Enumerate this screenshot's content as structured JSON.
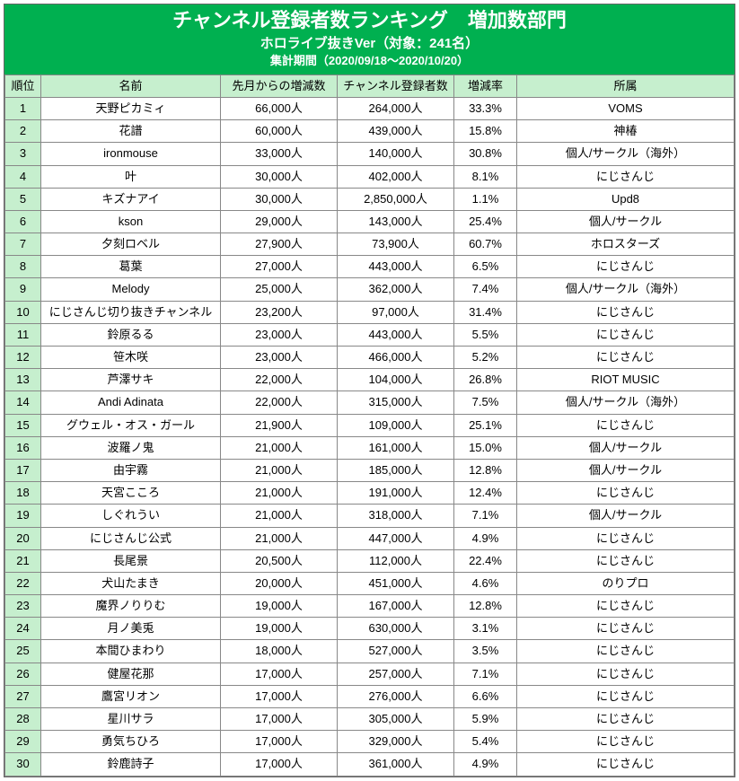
{
  "colors": {
    "header_bg": "#00b050",
    "header_text": "#ffffff",
    "thead_bg": "#c6efce",
    "rank_bg": "#c6efce",
    "row_bg": "#ffffff",
    "border": "#888888"
  },
  "header": {
    "title": "チャンネル登録者数ランキング　増加数部門",
    "subtitle": "ホロライブ抜きVer（対象：241名）",
    "period": "集計期間（2020/09/18～2020/10/20）"
  },
  "columns": [
    "順位",
    "名前",
    "先月からの増減数",
    "チャンネル登録者数",
    "増減率",
    "所属"
  ],
  "rows": [
    {
      "rank": 1,
      "name": "天野ピカミィ",
      "delta": "66,000人",
      "subs": "264,000人",
      "rate": "33.3%",
      "affil": "VOMS"
    },
    {
      "rank": 2,
      "name": "花譜",
      "delta": "60,000人",
      "subs": "439,000人",
      "rate": "15.8%",
      "affil": "神椿"
    },
    {
      "rank": 3,
      "name": "ironmouse",
      "delta": "33,000人",
      "subs": "140,000人",
      "rate": "30.8%",
      "affil": "個人/サークル（海外）"
    },
    {
      "rank": 4,
      "name": "叶",
      "delta": "30,000人",
      "subs": "402,000人",
      "rate": "8.1%",
      "affil": "にじさんじ"
    },
    {
      "rank": 5,
      "name": "キズナアイ",
      "delta": "30,000人",
      "subs": "2,850,000人",
      "rate": "1.1%",
      "affil": "Upd8"
    },
    {
      "rank": 6,
      "name": "kson",
      "delta": "29,000人",
      "subs": "143,000人",
      "rate": "25.4%",
      "affil": "個人/サークル"
    },
    {
      "rank": 7,
      "name": "夕刻ロベル",
      "delta": "27,900人",
      "subs": "73,900人",
      "rate": "60.7%",
      "affil": "ホロスターズ"
    },
    {
      "rank": 8,
      "name": "葛葉",
      "delta": "27,000人",
      "subs": "443,000人",
      "rate": "6.5%",
      "affil": "にじさんじ"
    },
    {
      "rank": 9,
      "name": "Melody",
      "delta": "25,000人",
      "subs": "362,000人",
      "rate": "7.4%",
      "affil": "個人/サークル（海外）"
    },
    {
      "rank": 10,
      "name": "にじさんじ切り抜きチャンネル",
      "delta": "23,200人",
      "subs": "97,000人",
      "rate": "31.4%",
      "affil": "にじさんじ"
    },
    {
      "rank": 11,
      "name": "鈴原るる",
      "delta": "23,000人",
      "subs": "443,000人",
      "rate": "5.5%",
      "affil": "にじさんじ"
    },
    {
      "rank": 12,
      "name": "笹木咲",
      "delta": "23,000人",
      "subs": "466,000人",
      "rate": "5.2%",
      "affil": "にじさんじ"
    },
    {
      "rank": 13,
      "name": "芦澤サキ",
      "delta": "22,000人",
      "subs": "104,000人",
      "rate": "26.8%",
      "affil": "RIOT MUSIC"
    },
    {
      "rank": 14,
      "name": "Andi Adinata",
      "delta": "22,000人",
      "subs": "315,000人",
      "rate": "7.5%",
      "affil": "個人/サークル（海外）"
    },
    {
      "rank": 15,
      "name": "グウェル・オス・ガール",
      "delta": "21,900人",
      "subs": "109,000人",
      "rate": "25.1%",
      "affil": "にじさんじ"
    },
    {
      "rank": 16,
      "name": "波羅ノ鬼",
      "delta": "21,000人",
      "subs": "161,000人",
      "rate": "15.0%",
      "affil": "個人/サークル"
    },
    {
      "rank": 17,
      "name": "由宇霧",
      "delta": "21,000人",
      "subs": "185,000人",
      "rate": "12.8%",
      "affil": "個人/サークル"
    },
    {
      "rank": 18,
      "name": "天宮こころ",
      "delta": "21,000人",
      "subs": "191,000人",
      "rate": "12.4%",
      "affil": "にじさんじ"
    },
    {
      "rank": 19,
      "name": "しぐれうい",
      "delta": "21,000人",
      "subs": "318,000人",
      "rate": "7.1%",
      "affil": "個人/サークル"
    },
    {
      "rank": 20,
      "name": "にじさんじ公式",
      "delta": "21,000人",
      "subs": "447,000人",
      "rate": "4.9%",
      "affil": "にじさんじ"
    },
    {
      "rank": 21,
      "name": "長尾景",
      "delta": "20,500人",
      "subs": "112,000人",
      "rate": "22.4%",
      "affil": "にじさんじ"
    },
    {
      "rank": 22,
      "name": "犬山たまき",
      "delta": "20,000人",
      "subs": "451,000人",
      "rate": "4.6%",
      "affil": "のりプロ"
    },
    {
      "rank": 23,
      "name": "魔界ノりりむ",
      "delta": "19,000人",
      "subs": "167,000人",
      "rate": "12.8%",
      "affil": "にじさんじ"
    },
    {
      "rank": 24,
      "name": "月ノ美兎",
      "delta": "19,000人",
      "subs": "630,000人",
      "rate": "3.1%",
      "affil": "にじさんじ"
    },
    {
      "rank": 25,
      "name": "本間ひまわり",
      "delta": "18,000人",
      "subs": "527,000人",
      "rate": "3.5%",
      "affil": "にじさんじ"
    },
    {
      "rank": 26,
      "name": "健屋花那",
      "delta": "17,000人",
      "subs": "257,000人",
      "rate": "7.1%",
      "affil": "にじさんじ"
    },
    {
      "rank": 27,
      "name": "鷹宮リオン",
      "delta": "17,000人",
      "subs": "276,000人",
      "rate": "6.6%",
      "affil": "にじさんじ"
    },
    {
      "rank": 28,
      "name": "星川サラ",
      "delta": "17,000人",
      "subs": "305,000人",
      "rate": "5.9%",
      "affil": "にじさんじ"
    },
    {
      "rank": 29,
      "name": "勇気ちひろ",
      "delta": "17,000人",
      "subs": "329,000人",
      "rate": "5.4%",
      "affil": "にじさんじ"
    },
    {
      "rank": 30,
      "name": "鈴鹿詩子",
      "delta": "17,000人",
      "subs": "361,000人",
      "rate": "4.9%",
      "affil": "にじさんじ"
    }
  ]
}
